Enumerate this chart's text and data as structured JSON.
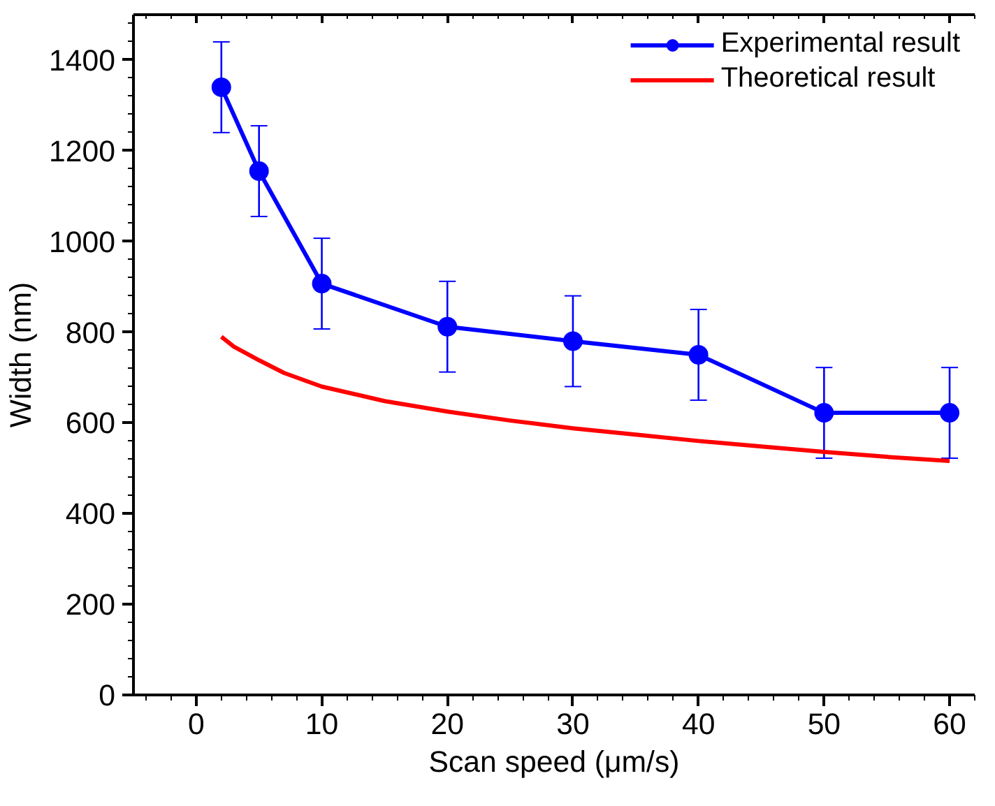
{
  "chart_data": {
    "type": "line",
    "xlabel": "Scan speed (μm/s)",
    "ylabel": "Width (nm)",
    "xlim": [
      -5,
      62
    ],
    "ylim": [
      0,
      1500
    ],
    "xticks": [
      0,
      10,
      20,
      30,
      40,
      50,
      60
    ],
    "yticks": [
      0,
      200,
      400,
      600,
      800,
      1000,
      1200,
      1400
    ],
    "grid": false,
    "legend": "top right",
    "line_style": "solid",
    "series": [
      {
        "name": "Experimental result",
        "color": "#0000ff",
        "marker": "circle",
        "x": [
          2,
          5,
          10,
          20,
          30,
          40,
          50,
          60
        ],
        "values": [
          1340,
          1155,
          907,
          812,
          780,
          750,
          622,
          622
        ],
        "errors": [
          100,
          100,
          100,
          100,
          100,
          100,
          100,
          100
        ]
      },
      {
        "name": "Theoretical result",
        "color": "#ff0000",
        "marker": "none",
        "x": [
          2,
          3,
          5,
          7,
          10,
          15,
          20,
          25,
          30,
          35,
          40,
          45,
          50,
          55,
          60
        ],
        "values": [
          790,
          768,
          738,
          710,
          680,
          648,
          625,
          605,
          588,
          574,
          560,
          548,
          536,
          525,
          516
        ]
      }
    ]
  }
}
